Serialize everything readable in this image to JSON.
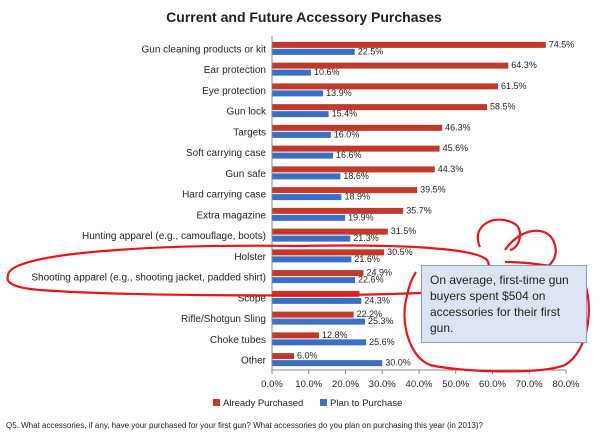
{
  "chart_data": {
    "type": "bar",
    "orientation": "horizontal",
    "title": "Current and Future Accessory Purchases",
    "categories": [
      "Gun cleaning products or kit",
      "Ear protection",
      "Eye protection",
      "Gun lock",
      "Targets",
      "Soft carrying case",
      "Gun safe",
      "Hard carrying case",
      "Extra magazine",
      "Hunting apparel (e.g., camouflage, boots)",
      "Holster",
      "Shooting apparel (e.g., shooting jacket, padded shirt)",
      "Scope",
      "Rifle/Shotgun Sling",
      "Choke tubes",
      "Other"
    ],
    "series": [
      {
        "name": "Already Purchased",
        "color": "#c0392b",
        "values": [
          74.5,
          64.3,
          61.5,
          58.5,
          46.3,
          45.6,
          44.3,
          39.5,
          35.7,
          31.5,
          30.5,
          24.9,
          23.8,
          22.2,
          12.8,
          6.0
        ],
        "labels": [
          "74.5%",
          "64.3%",
          "61.5%",
          "58.5%",
          "46.3%",
          "45.6%",
          "44.3%",
          "39.5%",
          "35.7%",
          "31.5%",
          "30.5%",
          "24.9%",
          "",
          "22.2%",
          "12.8%",
          "6.0%"
        ]
      },
      {
        "name": "Plan to Purchase",
        "color": "#3a6fc4",
        "values": [
          22.5,
          10.6,
          13.9,
          15.4,
          16.0,
          16.6,
          18.6,
          18.9,
          19.9,
          21.3,
          21.6,
          22.6,
          24.3,
          25.3,
          25.6,
          30.0
        ],
        "labels": [
          "22.5%",
          "10.6%",
          "13.9%",
          "15.4%",
          "16.0%",
          "16.6%",
          "18.6%",
          "18.9%",
          "19.9%",
          "21.3%",
          "21.6%",
          "22.6%",
          "24.3%",
          "25.3%",
          "25.6%",
          "30.0%"
        ]
      }
    ],
    "xlim": [
      0,
      80
    ],
    "xticks": [
      "0.0%",
      "10.0%",
      "20.0%",
      "30.0%",
      "40.0%",
      "50.0%",
      "60.0%",
      "70.0%",
      "80.0%"
    ],
    "grid": false,
    "legend_position": "bottom"
  },
  "callout_text": "On average, first-time gun buyers spent $504 on accessories for their first gun.",
  "footnote": "Q5. What accessories, if any, have your purchased for your first gun? What accessories do you plan on purchasing this year (in 2013)?",
  "annotation_color": "#e8141b"
}
